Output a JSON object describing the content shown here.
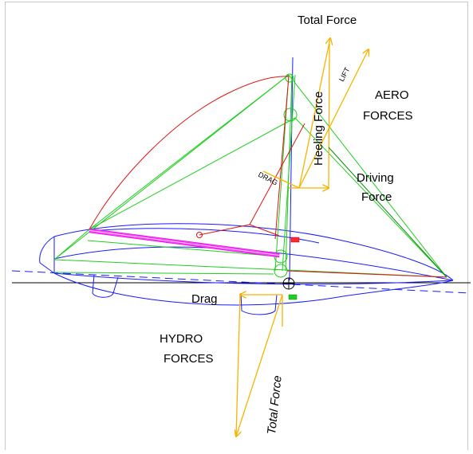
{
  "labels": {
    "total_force_top": "Total Force",
    "lift": "LIFT",
    "heeling_force": "Heeling Force",
    "aero_line1": "AERO",
    "aero_line2": "FORCES",
    "drag_aero": "DRAG",
    "driving_line1": "Driving",
    "driving_line2": "Force",
    "drag_hydro": "Drag",
    "hydro_line1": "HYDRO",
    "hydro_line2": "FORCES",
    "total_force_bottom": "Total Force"
  },
  "colors": {
    "hull": "#1a1aff",
    "sail_outline": "#e01010",
    "rigging": "#22cc22",
    "forces": "#f5b400",
    "boom": "#ff33ff",
    "waterline": "#000000",
    "mast_axis": "#1a1aff",
    "driving_line": "#0a8a0a"
  }
}
